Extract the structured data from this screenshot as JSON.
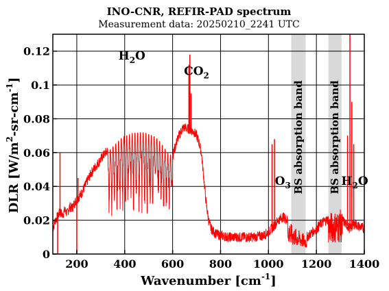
{
  "chart_data": {
    "type": "line",
    "title": "INO-CNR, REFIR-PAD spectrum",
    "subtitle": "Measurement data: 20250210_2241 UTC",
    "xlabel": {
      "main": "Wavenumber [cm",
      "sup": "-1",
      "tail": "]"
    },
    "ylabel": {
      "p1": "DLR [W/m",
      "sup1": "2",
      "p2": "-sr-cm",
      "sup2": "-1",
      "p3": "]"
    },
    "xlim": [
      100,
      1400
    ],
    "ylim": [
      0,
      0.13
    ],
    "xticks": [
      200,
      400,
      600,
      800,
      1000,
      1200,
      1400
    ],
    "xtick_labels": [
      "200",
      "400",
      "600",
      "800",
      "1000",
      "1200",
      "1400"
    ],
    "yticks": [
      0,
      0.02,
      0.04,
      0.06,
      0.08,
      0.1,
      0.12
    ],
    "ytick_labels": [
      "0",
      "0.02",
      "0.04",
      "0.06",
      "0.08",
      "0.1",
      "0.12"
    ],
    "grid": true,
    "series": [
      {
        "color": "#ff0000",
        "x": [
          100,
          110,
          120,
          130,
          140,
          150,
          160,
          170,
          180,
          190,
          200,
          210,
          220,
          240,
          260,
          280,
          300,
          320,
          340,
          360,
          380,
          400,
          420,
          440,
          460,
          480,
          500,
          520,
          540,
          560,
          580,
          600,
          620,
          640,
          650,
          660,
          670,
          680,
          690,
          700,
          710,
          720,
          730,
          740,
          750,
          760,
          780,
          800,
          830,
          860,
          900,
          940,
          980,
          1000,
          1020,
          1040,
          1060,
          1080,
          1100,
          1160,
          1200,
          1220,
          1240,
          1300,
          1320,
          1340,
          1360,
          1380,
          1400
        ],
        "y": [
          0.015,
          0.02,
          0.022,
          0.025,
          0.023,
          0.026,
          0.024,
          0.028,
          0.027,
          0.03,
          0.032,
          0.034,
          0.036,
          0.042,
          0.048,
          0.052,
          0.056,
          0.06,
          0.062,
          0.065,
          0.068,
          0.07,
          0.071,
          0.072,
          0.072,
          0.072,
          0.071,
          0.07,
          0.068,
          0.064,
          0.06,
          0.058,
          0.068,
          0.074,
          0.075,
          0.074,
          0.074,
          0.073,
          0.072,
          0.07,
          0.066,
          0.06,
          0.045,
          0.03,
          0.02,
          0.015,
          0.012,
          0.011,
          0.01,
          0.01,
          0.01,
          0.01,
          0.011,
          0.013,
          0.016,
          0.02,
          0.022,
          0.02,
          0.015,
          0.01,
          0.015,
          0.018,
          0.02,
          0.022,
          0.018,
          0.015,
          0.018,
          0.016,
          0.015
        ],
        "spikes": [
          {
            "x": 130,
            "y": 0.06
          },
          {
            "x": 200,
            "y": 0.0
          },
          {
            "x": 205,
            "y": 0.045
          },
          {
            "x": 120,
            "y": 0.0
          },
          {
            "x": 668,
            "y": 0.112
          },
          {
            "x": 672,
            "y": 0.118
          },
          {
            "x": 677,
            "y": 0.095
          },
          {
            "x": 1015,
            "y": 0.065
          },
          {
            "x": 1025,
            "y": 0.068
          },
          {
            "x": 1330,
            "y": 0.07
          },
          {
            "x": 1340,
            "y": 0.13
          },
          {
            "x": 1348,
            "y": 0.09
          },
          {
            "x": 1356,
            "y": 0.065
          }
        ]
      }
    ],
    "bands": [
      {
        "x0": 1095,
        "x1": 1155,
        "label": "BS absorption band"
      },
      {
        "x0": 1250,
        "x1": 1305,
        "label": "BS absorption band"
      }
    ],
    "annotations": [
      {
        "text": "H",
        "sub": "2",
        "tail": "O",
        "x": 430,
        "y": 0.115
      },
      {
        "text": "CO",
        "sub": "2",
        "tail": "",
        "x": 700,
        "y": 0.106
      },
      {
        "text": "O",
        "sub": "3",
        "tail": "",
        "x": 1060,
        "y": 0.041
      },
      {
        "text": "H",
        "sub": "2",
        "tail": "O",
        "x": 1360,
        "y": 0.041
      }
    ]
  }
}
